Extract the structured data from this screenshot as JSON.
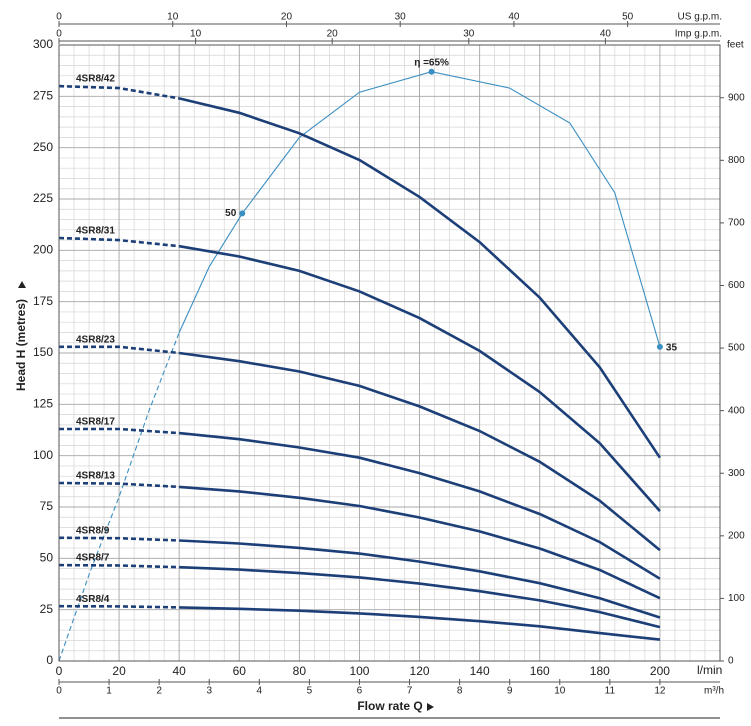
{
  "chart_data": {
    "type": "line",
    "xlabel": "Flow rate Q",
    "xunit": "l/min",
    "ylabel": "Head H (metres)",
    "xlim": [
      0,
      220
    ],
    "xticks": [
      0,
      20,
      40,
      60,
      80,
      100,
      120,
      140,
      160,
      180,
      200
    ],
    "ylim": [
      0,
      300
    ],
    "yticks": [
      0,
      25,
      50,
      75,
      100,
      125,
      150,
      175,
      200,
      225,
      250,
      275,
      300
    ],
    "grid": true,
    "minor_grid_step": {
      "x": 5,
      "y": 5
    },
    "top_axis": {
      "label": "US g.p.m.",
      "lim": [
        0,
        58.12
      ],
      "ticks": [
        0,
        10,
        20,
        30,
        40,
        50
      ]
    },
    "top_axis_2": {
      "label": "Imp g.p.m.",
      "lim": [
        0,
        48.39
      ],
      "ticks": [
        0,
        10,
        20,
        30,
        40
      ]
    },
    "bottom_axis_2": {
      "label": "m³/h",
      "lim": [
        0,
        13.2
      ],
      "ticks": [
        0,
        1,
        2,
        3,
        4,
        5,
        6,
        7,
        8,
        9,
        10,
        11,
        12
      ]
    },
    "y2label": "feet",
    "y2lim": [
      0,
      984.25
    ],
    "y2ticks": [
      0,
      100,
      200,
      300,
      400,
      500,
      600,
      700,
      800,
      900
    ],
    "x": [
      0,
      20,
      40,
      60,
      80,
      100,
      120,
      140,
      160,
      180,
      200
    ],
    "dashed_to": 40,
    "series": [
      {
        "name": "4SR8/42",
        "color": "#1d3f78",
        "values": [
          280,
          279,
          274,
          267,
          257,
          244,
          226,
          204,
          177,
          143,
          99
        ]
      },
      {
        "name": "4SR8/31",
        "color": "#1d3f78",
        "values": [
          206,
          205,
          202,
          197,
          190,
          180,
          167,
          151,
          131,
          106,
          73
        ]
      },
      {
        "name": "4SR8/23",
        "color": "#1d3f78",
        "values": [
          153,
          153,
          150,
          146,
          141,
          134,
          124,
          112,
          97,
          78,
          54
        ]
      },
      {
        "name": "4SR8/17",
        "color": "#1d3f78",
        "values": [
          113,
          113,
          111,
          108,
          104,
          99,
          91.5,
          82.6,
          71.6,
          57.9,
          40.1
        ]
      },
      {
        "name": "4SR8/13",
        "color": "#1d3f78",
        "values": [
          86.7,
          86.4,
          84.8,
          82.6,
          79.5,
          75.5,
          69.9,
          63.1,
          54.8,
          44.3,
          30.6
        ]
      },
      {
        "name": "4SR8/9",
        "color": "#1d3f78",
        "values": [
          60,
          59.8,
          58.7,
          57.2,
          55.1,
          52.3,
          48.4,
          43.7,
          37.9,
          30.6,
          21.2
        ]
      },
      {
        "name": "4SR8/7",
        "color": "#1d3f78",
        "values": [
          46.7,
          46.5,
          45.7,
          44.5,
          42.8,
          40.7,
          37.7,
          34,
          29.5,
          23.8,
          16.5
        ]
      },
      {
        "name": "4SR8/4",
        "color": "#1d3f78",
        "values": [
          26.7,
          26.6,
          26.1,
          25.4,
          24.5,
          23.2,
          21.5,
          19.4,
          16.9,
          13.6,
          10.4
        ]
      }
    ],
    "efficiency": {
      "color": "#3b8fc2",
      "dashed_to": 40,
      "x": [
        0,
        10,
        20,
        30,
        40,
        50,
        61,
        80,
        100,
        124,
        150,
        170,
        185,
        200
      ],
      "values": [
        0,
        42,
        80,
        122,
        160,
        192,
        218,
        255,
        277,
        287,
        279,
        262,
        228,
        153
      ]
    },
    "annotations": [
      {
        "text": "50",
        "x": 61,
        "y": 218,
        "side": "left"
      },
      {
        "text": "η =65%",
        "x": 124,
        "y": 287,
        "side": "top"
      },
      {
        "text": "35",
        "x": 200,
        "y": 153,
        "side": "right"
      }
    ]
  }
}
